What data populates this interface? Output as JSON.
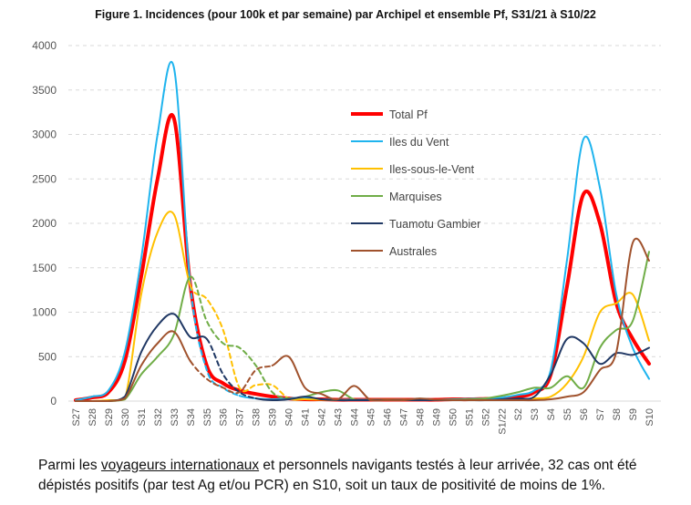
{
  "chart_data": {
    "type": "line",
    "title": "Figure 1. Incidences (pour 100k et par semaine) par Archipel et ensemble Pf, S31/21 à S10/22",
    "xlabel": "",
    "ylabel": "",
    "ylim": [
      0,
      4000
    ],
    "yticks": [
      "0",
      "500",
      "1000",
      "1500",
      "2000",
      "2500",
      "3000",
      "3500",
      "4000"
    ],
    "grid": "horizontal dashed",
    "legend_position": "center",
    "categories": [
      "S27",
      "S28",
      "S29",
      "S30",
      "S31",
      "S32",
      "S33",
      "S34",
      "S35",
      "S36",
      "S37",
      "S38",
      "S39",
      "S40",
      "S41",
      "S42",
      "S43",
      "S44",
      "S45",
      "S46",
      "S47",
      "S48",
      "S49",
      "S50",
      "S51",
      "S52",
      "S1/22",
      "S2",
      "S3",
      "S4",
      "S5",
      "S6",
      "S7",
      "S8",
      "S9",
      "S10"
    ],
    "series": [
      {
        "name": "Total Pf",
        "color": "#ff0000",
        "width": 4,
        "dashed_ranges": [],
        "values": [
          10,
          40,
          100,
          450,
          1400,
          2500,
          3180,
          1300,
          400,
          200,
          120,
          80,
          50,
          30,
          20,
          20,
          15,
          15,
          15,
          15,
          15,
          15,
          15,
          20,
          20,
          25,
          30,
          50,
          100,
          300,
          1300,
          2330,
          2000,
          1100,
          700,
          420
        ]
      },
      {
        "name": "Iles du Vent",
        "color": "#1fb4ee",
        "width": 2,
        "dashed_ranges": [
          [
            "S34",
            "S37"
          ]
        ],
        "values": [
          10,
          50,
          120,
          550,
          1600,
          3000,
          3750,
          1300,
          350,
          150,
          60,
          30,
          20,
          30,
          40,
          20,
          15,
          15,
          15,
          15,
          15,
          15,
          15,
          20,
          25,
          30,
          40,
          70,
          120,
          350,
          1600,
          2950,
          2400,
          1200,
          600,
          250
        ]
      },
      {
        "name": "Iles-sous-le-Vent",
        "color": "#ffc000",
        "width": 2,
        "dashed_ranges": [
          [
            "S34",
            "S40"
          ]
        ],
        "values": [
          0,
          0,
          10,
          20,
          1200,
          1900,
          2100,
          1300,
          1150,
          800,
          150,
          180,
          180,
          30,
          20,
          15,
          10,
          10,
          10,
          10,
          10,
          10,
          10,
          10,
          10,
          10,
          15,
          20,
          30,
          50,
          200,
          500,
          1000,
          1100,
          1200,
          680
        ]
      },
      {
        "name": "Marquises",
        "color": "#70ad47",
        "width": 2,
        "dashed_ranges": [
          [
            "S34",
            "S40"
          ]
        ],
        "values": [
          0,
          0,
          0,
          20,
          300,
          500,
          750,
          1400,
          900,
          650,
          600,
          400,
          100,
          30,
          50,
          100,
          120,
          20,
          15,
          15,
          15,
          20,
          15,
          15,
          20,
          30,
          60,
          100,
          150,
          150,
          280,
          150,
          600,
          800,
          900,
          1680
        ]
      },
      {
        "name": "Tuamotu Gambier",
        "color": "#203864",
        "width": 2,
        "dashed_ranges": [
          [
            "S35",
            "S38"
          ]
        ],
        "values": [
          0,
          0,
          0,
          50,
          550,
          850,
          980,
          720,
          700,
          300,
          100,
          30,
          10,
          20,
          50,
          20,
          10,
          10,
          10,
          10,
          10,
          10,
          10,
          10,
          10,
          10,
          20,
          30,
          50,
          300,
          700,
          650,
          420,
          540,
          520,
          600
        ]
      },
      {
        "name": "Australes",
        "color": "#a0522d",
        "width": 2,
        "dashed_ranges": [
          [
            "S34",
            "S39"
          ]
        ],
        "values": [
          0,
          0,
          0,
          30,
          400,
          650,
          780,
          450,
          250,
          150,
          100,
          350,
          400,
          500,
          150,
          80,
          20,
          170,
          10,
          10,
          10,
          30,
          15,
          10,
          10,
          10,
          10,
          10,
          10,
          20,
          50,
          100,
          350,
          550,
          1780,
          1580
        ]
      }
    ]
  },
  "paragraph": {
    "before": "Parmi les ",
    "link": "voyageurs internationaux",
    "after": " et personnels navigants testés à leur arrivée, 32 cas ont été dépistés positifs (par test Ag et/ou PCR) en S10, soit un taux de positivité de moins de 1%."
  }
}
